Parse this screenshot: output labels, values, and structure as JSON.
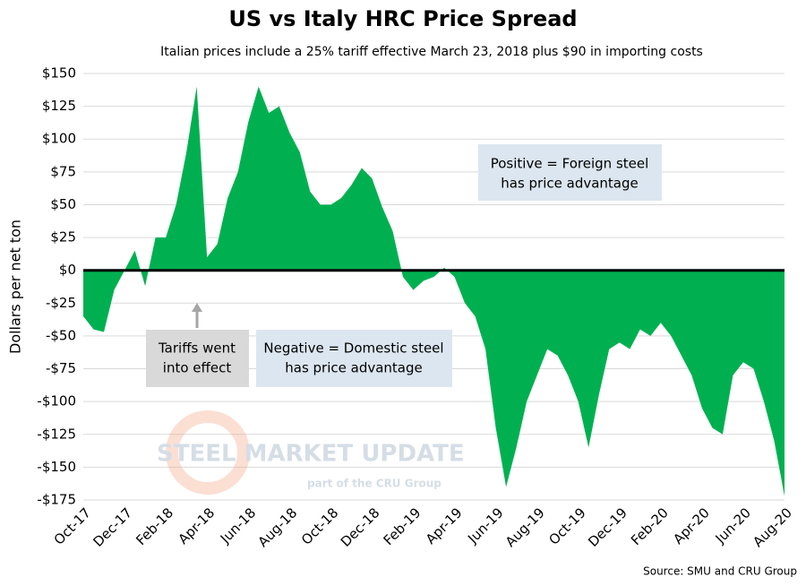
{
  "chart_data": {
    "type": "area",
    "title": "US vs Italy HRC Price Spread",
    "subtitle": "Italian prices include a 25% tariff effective March 23, 2018 plus $90 in importing costs",
    "y_label": "Dollars per net ton",
    "source": "Source: SMU and CRU Group",
    "watermark": [
      "STEEL MARKET UPDATE",
      "part of the CRU Group"
    ],
    "annotations": [
      [
        "Positive = Foreign steel",
        "has price advantage"
      ],
      [
        "Tariffs went",
        "into effect"
      ],
      [
        "Negative = Domestic steel",
        "has price advantage"
      ]
    ],
    "color": "#00b050",
    "categories": [
      "Oct-17",
      null,
      null,
      null,
      "Dec-17",
      null,
      null,
      null,
      "Feb-18",
      null,
      null,
      null,
      "Apr-18",
      null,
      null,
      null,
      "Jun-18",
      null,
      null,
      null,
      "Aug-18",
      null,
      null,
      null,
      "Oct-18",
      null,
      null,
      null,
      "Dec-18",
      null,
      null,
      null,
      "Feb-19",
      null,
      null,
      null,
      "Apr-19",
      null,
      null,
      null,
      "Jun-19",
      null,
      null,
      null,
      "Aug-19",
      null,
      null,
      null,
      "Oct-19",
      null,
      null,
      null,
      "Dec-19",
      null,
      null,
      null,
      "Feb-20",
      null,
      null,
      null,
      "Apr-20",
      null,
      null,
      null,
      "Jun-20",
      null,
      null,
      null,
      "Aug-20"
    ],
    "values": [
      -35,
      -45,
      -47,
      -15,
      0,
      15,
      -12,
      25,
      25,
      50,
      90,
      140,
      10,
      20,
      55,
      75,
      113,
      140,
      120,
      125,
      105,
      90,
      60,
      50,
      50,
      55,
      65,
      78,
      70,
      48,
      30,
      -5,
      -15,
      -8,
      -5,
      2,
      -5,
      -25,
      -35,
      -60,
      -120,
      -165,
      -135,
      -100,
      -80,
      -60,
      -65,
      -80,
      -100,
      -135,
      -95,
      -60,
      -55,
      -60,
      -45,
      -50,
      -40,
      -50,
      -65,
      -80,
      -105,
      -120,
      -125,
      -80,
      -70,
      -75,
      -100,
      -130,
      -172
    ],
    "ylim": [
      -175,
      150
    ],
    "yticks": [
      {
        "value": 150,
        "label": "$150"
      },
      {
        "value": 125,
        "label": "$125"
      },
      {
        "value": 100,
        "label": "$100"
      },
      {
        "value": 75,
        "label": "$75"
      },
      {
        "value": 50,
        "label": "$50"
      },
      {
        "value": 25,
        "label": "$25"
      },
      {
        "value": 0,
        "label": "$0"
      },
      {
        "value": -25,
        "label": "-$25"
      },
      {
        "value": -50,
        "label": "-$50"
      },
      {
        "value": -75,
        "label": "-$75"
      },
      {
        "value": -100,
        "label": "-$100"
      },
      {
        "value": -125,
        "label": "-$125"
      },
      {
        "value": -150,
        "label": "-$150"
      },
      {
        "value": -175,
        "label": "-$175"
      }
    ],
    "grid": true
  }
}
